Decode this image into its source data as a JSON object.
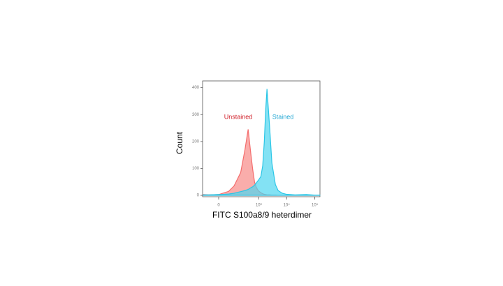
{
  "chart_data": {
    "type": "area",
    "y_label": "Count",
    "x_label": "FITC S100a8/9 heterdimer",
    "xscale": "symlog",
    "symlog_constant": 40,
    "xlim": [
      -108,
      152000
    ],
    "ylim": [
      -5,
      425
    ],
    "xticks": [
      0,
      {
        "value": 1000,
        "label": "10³"
      },
      {
        "value": 10000,
        "label": "10⁴"
      },
      {
        "value": 100000,
        "label": "10⁵"
      }
    ],
    "yticks": [
      0,
      100,
      200,
      300,
      400
    ],
    "x": [
      -100,
      -50,
      0,
      50,
      100,
      200,
      300,
      400,
      500,
      600,
      700,
      800,
      900,
      1000,
      1200,
      1400,
      1600,
      1800,
      2000,
      2500,
      3000,
      4000,
      5000,
      7000,
      10000,
      20000,
      50000,
      100000,
      150000
    ],
    "series": [
      {
        "name": "Unstained",
        "color": "#f46d6d",
        "fill": "#f88a88",
        "label_color": "#d0202a",
        "values": [
          3,
          2,
          3,
          15,
          35,
          85,
          170,
          245,
          160,
          95,
          50,
          32,
          22,
          16,
          10,
          6,
          4,
          3,
          2,
          2,
          1,
          1,
          0,
          0,
          0,
          0,
          0,
          0,
          0
        ]
      },
      {
        "name": "Stained",
        "color": "#2bc6e6",
        "fill": "#4fd6f0",
        "label_color": "#25a8d4",
        "values": [
          2,
          2,
          3,
          5,
          8,
          14,
          18,
          22,
          28,
          32,
          38,
          45,
          52,
          58,
          70,
          110,
          200,
          320,
          395,
          250,
          120,
          40,
          18,
          8,
          4,
          2,
          3,
          1,
          1
        ]
      }
    ]
  }
}
